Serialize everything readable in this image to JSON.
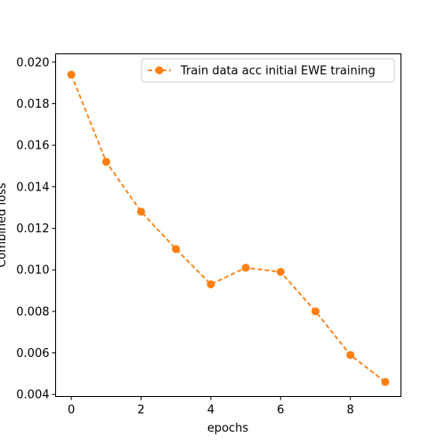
{
  "chart_data": {
    "type": "line",
    "title": "",
    "xlabel": "epochs",
    "ylabel": "Combined loss",
    "xlim": [
      -0.45,
      9.45
    ],
    "ylim": [
      0.0039,
      0.0204
    ],
    "xticks": [
      0,
      2,
      4,
      6,
      8
    ],
    "xtick_labels": [
      "0",
      "2",
      "4",
      "6",
      "8"
    ],
    "yticks": [
      0.004,
      0.006,
      0.008,
      0.01,
      0.012,
      0.014,
      0.016,
      0.018,
      0.02
    ],
    "ytick_labels": [
      "0.004",
      "0.006",
      "0.008",
      "0.010",
      "0.012",
      "0.014",
      "0.016",
      "0.018",
      "0.020"
    ],
    "grid": false,
    "legend_position": "upper right",
    "series": [
      {
        "name": "Train data acc initial EWE training",
        "color": "#ff7f0e",
        "line_style": "dashed",
        "marker": "circle",
        "x": [
          0,
          1,
          2,
          3,
          4,
          5,
          6,
          7,
          8,
          9
        ],
        "y": [
          0.0194,
          0.0152,
          0.0128,
          0.011,
          0.0093,
          0.0101,
          0.0099,
          0.008,
          0.0059,
          0.0046
        ]
      }
    ]
  }
}
